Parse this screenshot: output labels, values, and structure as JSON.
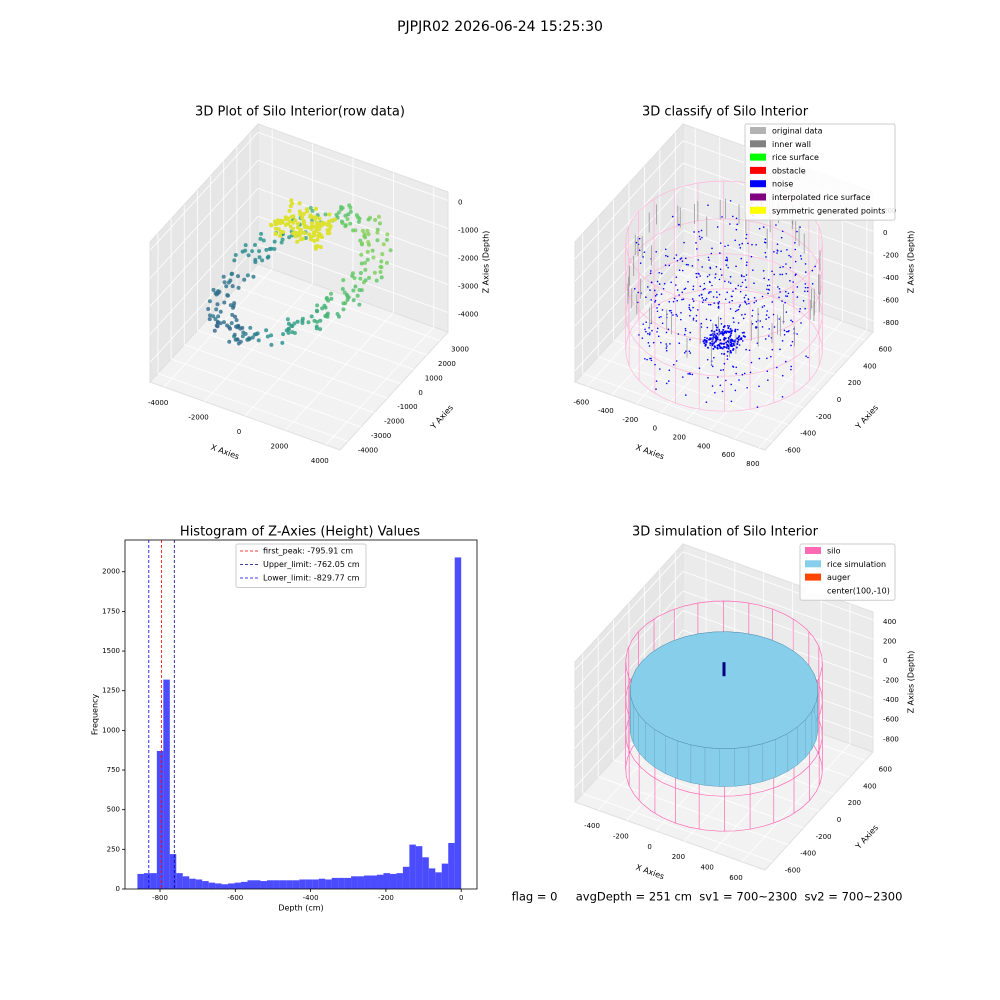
{
  "title": "PJPJR02 2026-06-24 15:25:30",
  "footer": "flag = 0     avgDepth = 251 cm  sv1 = 700~2300  sv2 = 700~2300",
  "chart_data": [
    {
      "type": "scatter3d",
      "title": "3D Plot of Silo Interior(row data)",
      "xlabel": "X Axies",
      "ylabel": "Y Axies",
      "zlabel": "Z Axies (Depth)",
      "xlim": [
        -4700,
        4700
      ],
      "ylim": [
        -4600,
        3600
      ],
      "zlim": [
        -4700,
        300
      ],
      "xticks": [
        -4000,
        -2000,
        0,
        2000,
        4000
      ],
      "yticks": [
        -4000,
        -3000,
        -2000,
        -1000,
        0,
        1000,
        2000,
        3000
      ],
      "zticks": [
        -4000,
        -3000,
        -2000,
        -1000,
        0
      ]
    },
    {
      "type": "scatter3d",
      "title": "3D classify of Silo Interior",
      "xlabel": "X Axies",
      "ylabel": "Y Axies",
      "zlabel": "Z Axies (Depth)",
      "xlim": [
        -700,
        850
      ],
      "ylim": [
        -700,
        700
      ],
      "zlim": [
        -900,
        350
      ],
      "xticks": [
        -600,
        -400,
        -200,
        0,
        200,
        400,
        600,
        800
      ],
      "yticks": [
        -600,
        -400,
        -200,
        0,
        200,
        400,
        600
      ],
      "zticks": [
        -800,
        -600,
        -400,
        -200,
        0,
        200
      ],
      "legend": [
        {
          "name": "original data",
          "color": "#b3b3b3"
        },
        {
          "name": "inner wall",
          "color": "#808080"
        },
        {
          "name": "rice surface",
          "color": "#00ff00"
        },
        {
          "name": "obstacle",
          "color": "#ff0000"
        },
        {
          "name": "noise",
          "color": "#0000ff"
        },
        {
          "name": "interpolated rice surface",
          "color": "#800080"
        },
        {
          "name": "symmetric generated points",
          "color": "#ffff00"
        }
      ]
    },
    {
      "type": "histogram",
      "title": "Histogram of Z-Axies (Height) Values",
      "xlabel": "Depth (cm)",
      "ylabel": "Frequency",
      "color": "#0000ff",
      "alpha": 0.7,
      "xlim": [
        -893,
        42
      ],
      "ylim": [
        0,
        2200
      ],
      "xticks": [
        -800,
        -600,
        -400,
        -200,
        0
      ],
      "yticks": [
        0,
        250,
        500,
        750,
        1000,
        1250,
        1500,
        1750,
        2000
      ],
      "bins": [
        -860,
        -842.8,
        -825.6,
        -808.4,
        -791.2,
        -774,
        -756.8,
        -739.6,
        -722.4,
        -705.2,
        -688,
        -670.8,
        -653.6,
        -636.4,
        -619.2,
        -602,
        -584.8,
        -567.6,
        -550.4,
        -533.2,
        -516,
        -498.8,
        -481.6,
        -464.4,
        -447.2,
        -430,
        -412.8,
        -395.6,
        -378.4,
        -361.2,
        -344,
        -326.8,
        -309.6,
        -292.4,
        -275.2,
        -258,
        -240.8,
        -223.6,
        -206.4,
        -189.2,
        -172,
        -154.8,
        -137.6,
        -120.4,
        -103.2,
        -86,
        -68.8,
        -51.6,
        -34.4,
        -17.2,
        0
      ],
      "values": [
        95,
        100,
        100,
        870,
        1320,
        220,
        100,
        80,
        65,
        60,
        50,
        40,
        35,
        30,
        35,
        40,
        45,
        55,
        55,
        50,
        55,
        55,
        55,
        55,
        55,
        60,
        60,
        60,
        65,
        60,
        70,
        70,
        70,
        80,
        80,
        85,
        85,
        90,
        100,
        95,
        100,
        140,
        280,
        270,
        200,
        130,
        105,
        160,
        290,
        2090
      ],
      "lines": [
        {
          "label": "first_peak: -795.91 cm",
          "value": -795.91,
          "color": "#ff0000"
        },
        {
          "label": "Upper_limit: -762.05 cm",
          "value": -762.05,
          "color": "#000080"
        },
        {
          "label": "Lower_limit: -829.77 cm",
          "value": -829.77,
          "color": "#0000ff"
        }
      ]
    },
    {
      "type": "surface3d",
      "title": "3D simulation of Silo Interior",
      "xlabel": "X Axies",
      "ylabel": "Y Axies",
      "zlabel": "Z Axies (Depth)",
      "xlim": [
        -560,
        760
      ],
      "ylim": [
        -700,
        700
      ],
      "zlim": [
        -950,
        480
      ],
      "xticks": [
        -400,
        -200,
        0,
        200,
        400,
        600
      ],
      "yticks": [
        -600,
        -400,
        -200,
        0,
        200,
        400,
        600
      ],
      "zticks": [
        -800,
        -600,
        -400,
        -200,
        0,
        200,
        400
      ],
      "legend": [
        {
          "name": "silo",
          "color": "#ff69b4"
        },
        {
          "name": "rice simulation",
          "color": "#87ceeb"
        },
        {
          "name": "auger",
          "color": "#ff4500"
        },
        {
          "name": "center(100,-10)",
          "color": "#ffffff"
        }
      ]
    }
  ]
}
